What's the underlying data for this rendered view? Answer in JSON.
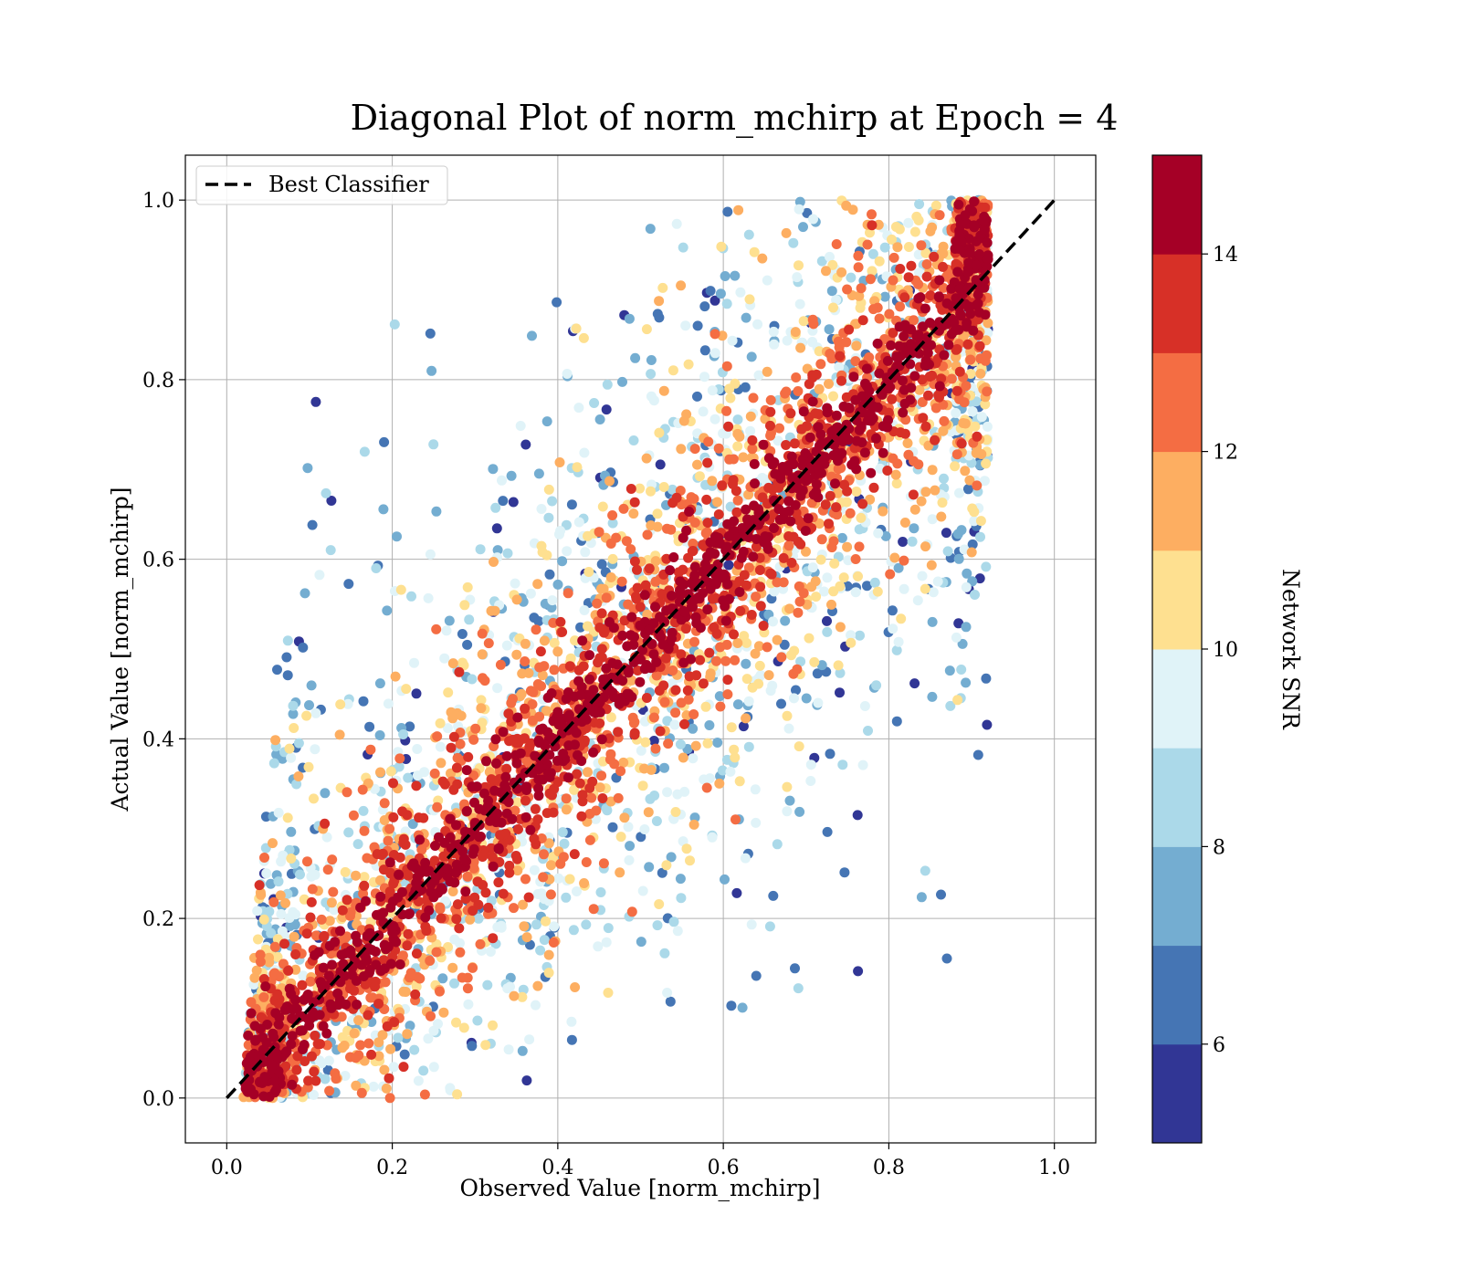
{
  "chart_data": {
    "type": "scatter",
    "title": "Diagonal Plot of norm_mchirp at Epoch = 4",
    "xlabel": "Observed Value [norm_mchirp]",
    "ylabel": "Actual Value [norm_mchirp]",
    "xlim": [
      -0.05,
      1.05
    ],
    "ylim": [
      -0.05,
      1.05
    ],
    "xticks": [
      0.0,
      0.2,
      0.4,
      0.6,
      0.8,
      1.0
    ],
    "yticks": [
      0.0,
      0.2,
      0.4,
      0.6,
      0.8,
      1.0
    ],
    "xtick_labels": [
      "0.0",
      "0.2",
      "0.4",
      "0.6",
      "0.8",
      "1.0"
    ],
    "ytick_labels": [
      "0.0",
      "0.2",
      "0.4",
      "0.6",
      "0.8",
      "1.0"
    ],
    "grid": true,
    "legend": {
      "placement": "top-left",
      "entries": [
        "Best Classifier"
      ]
    },
    "reference_line": {
      "name": "Best Classifier",
      "x": [
        0.0,
        1.0
      ],
      "y": [
        0.0,
        1.0
      ],
      "style": "dashed",
      "color": "#000000"
    },
    "points": {
      "description": "dense cloud of predictions around the diagonal; high SNR (red) tight to the line, low SNR (blue) widely scattered",
      "x_range": [
        0.02,
        0.92
      ],
      "y_range": [
        0.0,
        1.0
      ],
      "color_by": "Network SNR"
    },
    "colorbar": {
      "label": "Network SNR",
      "range": [
        5,
        15
      ],
      "ticks": [
        6,
        8,
        10,
        12,
        14
      ],
      "tick_labels": [
        "6",
        "8",
        "10",
        "12",
        "14"
      ],
      "colors": [
        "#313695",
        "#4575b4",
        "#74add1",
        "#abd9e9",
        "#e0f3f8",
        "#fee090",
        "#fdae61",
        "#f46d43",
        "#d73027",
        "#a50026"
      ]
    }
  }
}
